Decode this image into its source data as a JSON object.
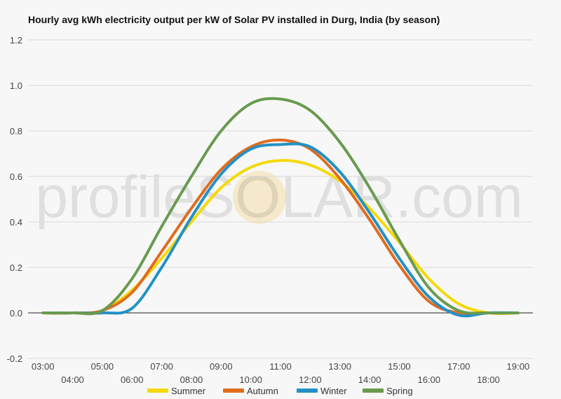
{
  "title": "Hourly avg kWh electricity output per kW of Solar PV installed in Durg, India (by season)",
  "watermark": "profileSOLAR.com",
  "chart_data": {
    "type": "line",
    "title": "Hourly avg kWh electricity output per kW of Solar PV installed in Durg, India (by season)",
    "xlabel": "",
    "ylabel": "",
    "ylim": [
      -0.2,
      1.2
    ],
    "yticks": [
      "-0.2",
      "0.0",
      "0.2",
      "0.4",
      "0.6",
      "0.8",
      "1.0",
      "1.2"
    ],
    "x": [
      "03:00",
      "04:00",
      "05:00",
      "06:00",
      "07:00",
      "08:00",
      "09:00",
      "10:00",
      "11:00",
      "12:00",
      "13:00",
      "14:00",
      "15:00",
      "16:00",
      "17:00",
      "18:00",
      "19:00"
    ],
    "grid": true,
    "legend": "bottom",
    "series": [
      {
        "name": "Summer",
        "color": "#f5d90a",
        "values": [
          0,
          0,
          0.01,
          0.1,
          0.24,
          0.4,
          0.55,
          0.64,
          0.67,
          0.65,
          0.58,
          0.46,
          0.31,
          0.15,
          0.04,
          0,
          0
        ]
      },
      {
        "name": "Autumn",
        "color": "#e06c1e",
        "values": [
          0,
          0,
          0.01,
          0.09,
          0.27,
          0.46,
          0.63,
          0.73,
          0.76,
          0.72,
          0.59,
          0.41,
          0.21,
          0.05,
          0,
          0,
          0
        ]
      },
      {
        "name": "Winter",
        "color": "#2391c6",
        "values": [
          0,
          0,
          0,
          0.02,
          0.2,
          0.42,
          0.61,
          0.72,
          0.74,
          0.73,
          0.62,
          0.44,
          0.24,
          0.07,
          -0.01,
          0,
          0
        ]
      },
      {
        "name": "Spring",
        "color": "#6a9a4f",
        "values": [
          0,
          0,
          0.01,
          0.15,
          0.38,
          0.6,
          0.8,
          0.92,
          0.94,
          0.89,
          0.75,
          0.55,
          0.32,
          0.11,
          0.01,
          0,
          0
        ]
      }
    ]
  }
}
